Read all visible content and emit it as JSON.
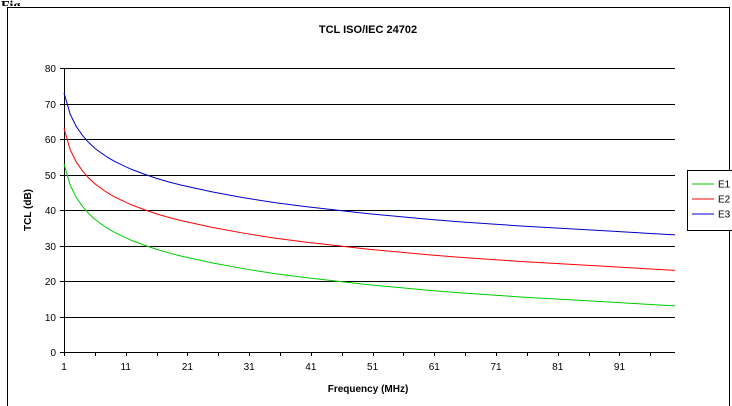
{
  "figure_heading_fragment": "Fig",
  "chart_data": {
    "type": "line",
    "title": "TCL ISO/IEC 24702",
    "xlabel": "Frequency (MHz)",
    "ylabel": "TCL (dB)",
    "xlim": [
      1,
      100
    ],
    "ylim": [
      0,
      80
    ],
    "y_ticks": [
      0,
      10,
      20,
      30,
      40,
      50,
      60,
      70,
      80
    ],
    "x_ticks": [
      1,
      11,
      21,
      31,
      41,
      51,
      61,
      71,
      81,
      91
    ],
    "x_tick_labels": [
      "1",
      "11",
      "21",
      "31",
      "41",
      "51",
      "61",
      "71",
      "81",
      "91"
    ],
    "grid": "horizontal",
    "legend": "right",
    "x": [
      1,
      2,
      3,
      4,
      5,
      6,
      7,
      8,
      9,
      10,
      12,
      14,
      16,
      18,
      20,
      25,
      30,
      35,
      40,
      45,
      50,
      55,
      60,
      65,
      70,
      75,
      80,
      85,
      90,
      95,
      100
    ],
    "series": [
      {
        "name": "E1",
        "color": "#00cc00",
        "values": [
          53.0,
          47.0,
          43.5,
          41.0,
          39.0,
          37.4,
          36.1,
          34.9,
          33.9,
          33.0,
          31.4,
          30.1,
          28.9,
          27.9,
          27.0,
          25.1,
          23.5,
          22.1,
          21.0,
          20.0,
          19.0,
          18.2,
          17.4,
          16.7,
          16.1,
          15.5,
          15.0,
          14.5,
          14.0,
          13.5,
          13.0
        ]
      },
      {
        "name": "E2",
        "color": "#ff0000",
        "values": [
          63.0,
          57.0,
          53.5,
          51.0,
          49.0,
          47.4,
          46.1,
          44.9,
          43.9,
          43.0,
          41.4,
          40.1,
          38.9,
          37.9,
          37.0,
          35.1,
          33.5,
          32.1,
          31.0,
          30.0,
          29.0,
          28.2,
          27.4,
          26.7,
          26.1,
          25.5,
          25.0,
          24.5,
          24.0,
          23.5,
          23.0
        ]
      },
      {
        "name": "E3",
        "color": "#0000cc",
        "values": [
          73.0,
          67.0,
          63.5,
          61.0,
          59.0,
          57.4,
          56.1,
          54.9,
          53.9,
          53.0,
          51.4,
          50.1,
          48.9,
          47.9,
          47.0,
          45.1,
          43.5,
          42.1,
          41.0,
          40.0,
          39.0,
          38.2,
          37.4,
          36.7,
          36.1,
          35.5,
          35.0,
          34.5,
          34.0,
          33.5,
          33.0
        ]
      }
    ]
  }
}
